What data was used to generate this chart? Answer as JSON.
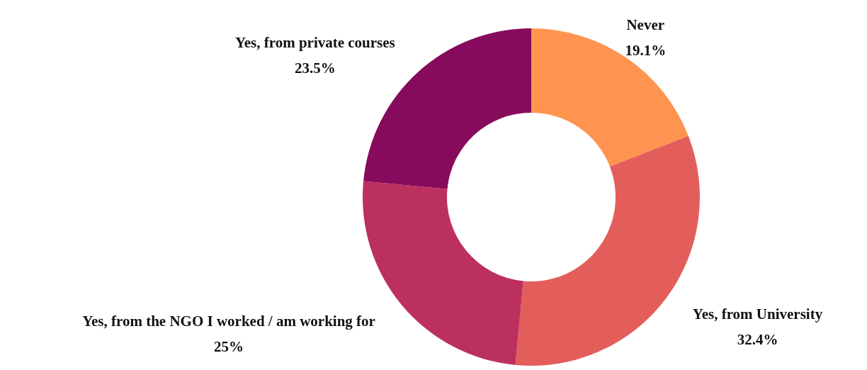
{
  "chart_data": {
    "type": "donut",
    "categories": [
      "Never",
      "Yes, from University",
      "Yes, from the NGO I worked / am working for",
      "Yes, from private courses"
    ],
    "values": [
      19.1,
      32.4,
      25,
      23.5
    ],
    "colors": [
      "#ff9350",
      "#e35e5a",
      "#bc305d",
      "#870b5c"
    ],
    "value_labels": [
      "19.1%",
      "32.4%",
      "25%",
      "23.5%"
    ]
  }
}
